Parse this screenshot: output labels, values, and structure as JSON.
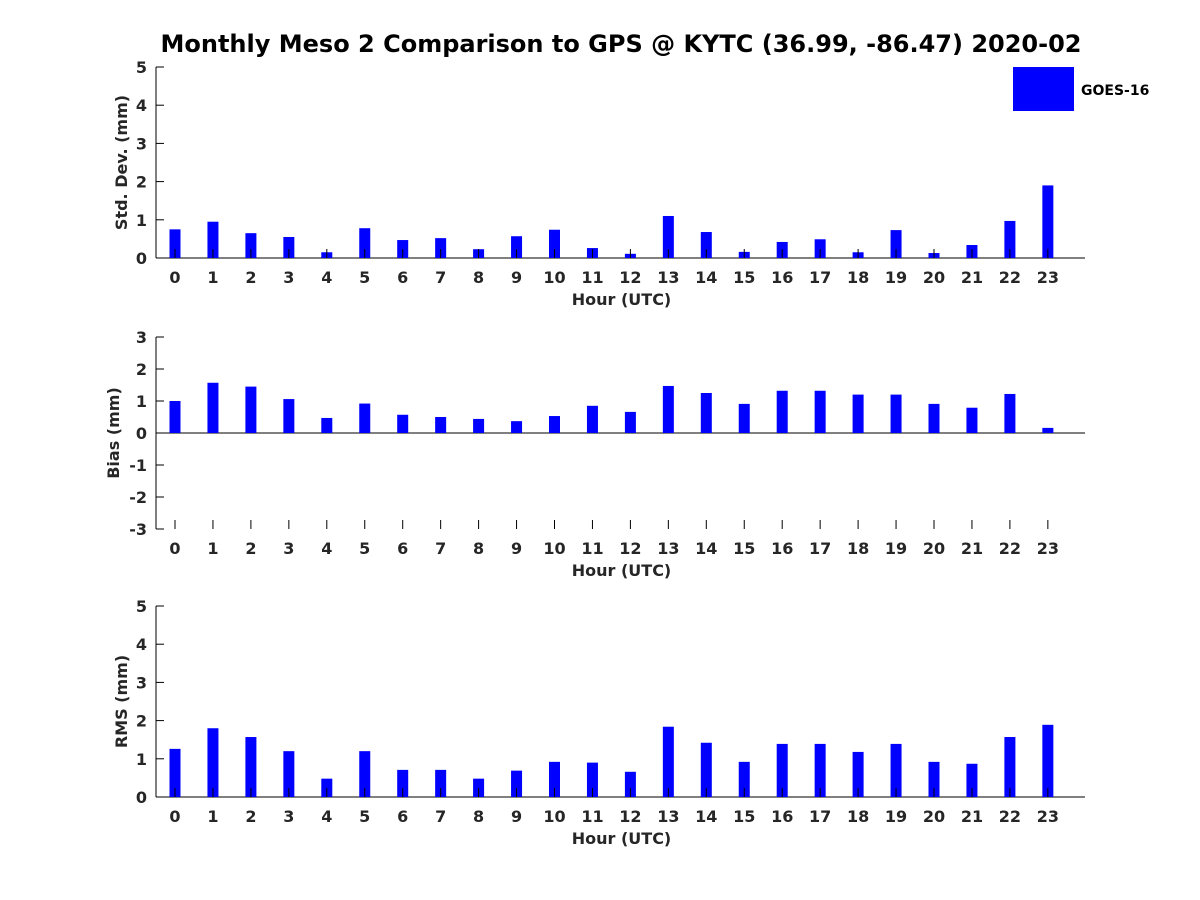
{
  "title": "Monthly Meso 2 Comparison to GPS @ KYTC (36.99, -86.47) 2020-02",
  "colors": {
    "bar": "#0000ff",
    "axis": "#000000",
    "tick_text": "#262626"
  },
  "legend": {
    "label": "GOES-16",
    "placement": "top-right"
  },
  "chart_data": [
    {
      "type": "bar",
      "name": "stddev",
      "ylabel": "Std. Dev. (mm)",
      "xlabel": "Hour (UTC)",
      "ylim": [
        0,
        5
      ],
      "yticks": [
        "0",
        "1",
        "2",
        "3",
        "4",
        "5"
      ],
      "categories": [
        "0",
        "1",
        "2",
        "3",
        "4",
        "5",
        "6",
        "7",
        "8",
        "9",
        "10",
        "11",
        "12",
        "13",
        "14",
        "15",
        "16",
        "17",
        "18",
        "19",
        "20",
        "21",
        "22",
        "23"
      ],
      "series": [
        {
          "name": "GOES-16",
          "values": [
            0.75,
            0.95,
            0.65,
            0.55,
            0.15,
            0.78,
            0.47,
            0.52,
            0.23,
            0.57,
            0.74,
            0.26,
            0.11,
            1.1,
            0.68,
            0.16,
            0.42,
            0.49,
            0.15,
            0.73,
            0.13,
            0.34,
            0.97,
            1.9
          ]
        }
      ],
      "grid": false
    },
    {
      "type": "bar",
      "name": "bias",
      "ylabel": "Bias (mm)",
      "xlabel": "Hour (UTC)",
      "ylim": [
        -3,
        3
      ],
      "yticks": [
        "-3",
        "-2",
        "-1",
        "0",
        "1",
        "2",
        "3"
      ],
      "categories": [
        "0",
        "1",
        "2",
        "3",
        "4",
        "5",
        "6",
        "7",
        "8",
        "9",
        "10",
        "11",
        "12",
        "13",
        "14",
        "15",
        "16",
        "17",
        "18",
        "19",
        "20",
        "21",
        "22",
        "23"
      ],
      "series": [
        {
          "name": "GOES-16",
          "values": [
            1.0,
            1.57,
            1.45,
            1.06,
            0.47,
            0.92,
            0.57,
            0.5,
            0.44,
            0.37,
            0.53,
            0.85,
            0.66,
            1.47,
            1.25,
            0.91,
            1.32,
            1.32,
            1.2,
            1.2,
            0.91,
            0.79,
            1.22,
            0.16
          ]
        }
      ],
      "grid": false
    },
    {
      "type": "bar",
      "name": "rms",
      "ylabel": "RMS (mm)",
      "xlabel": "Hour (UTC)",
      "ylim": [
        0,
        5
      ],
      "yticks": [
        "0",
        "1",
        "2",
        "3",
        "4",
        "5"
      ],
      "categories": [
        "0",
        "1",
        "2",
        "3",
        "4",
        "5",
        "6",
        "7",
        "8",
        "9",
        "10",
        "11",
        "12",
        "13",
        "14",
        "15",
        "16",
        "17",
        "18",
        "19",
        "20",
        "21",
        "22",
        "23"
      ],
      "series": [
        {
          "name": "GOES-16",
          "values": [
            1.26,
            1.8,
            1.57,
            1.2,
            0.48,
            1.2,
            0.71,
            0.71,
            0.48,
            0.69,
            0.92,
            0.9,
            0.66,
            1.84,
            1.42,
            0.92,
            1.39,
            1.39,
            1.18,
            1.39,
            0.92,
            0.87,
            1.57,
            1.89
          ]
        }
      ],
      "grid": false
    }
  ]
}
